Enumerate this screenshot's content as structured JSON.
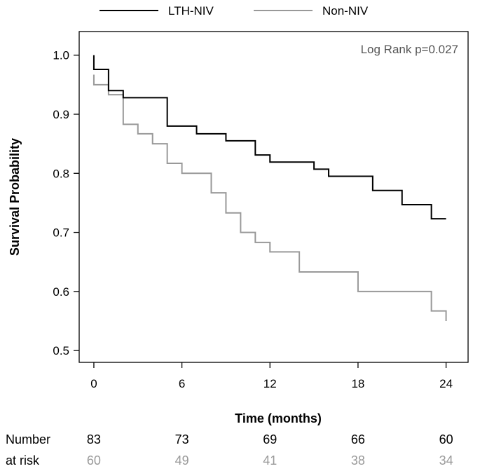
{
  "chart_data": {
    "type": "line",
    "subtype": "kaplan-meier step",
    "title": "",
    "xlabel": "Time (months)",
    "ylabel": "Survival Probability",
    "xlim": [
      -1,
      25.5
    ],
    "ylim": [
      0.48,
      1.04
    ],
    "xticks": [
      0,
      6,
      12,
      18,
      24
    ],
    "yticks": [
      0.5,
      0.6,
      0.7,
      0.8,
      0.9,
      1.0
    ],
    "xtick_labels": [
      "0",
      "6",
      "12",
      "18",
      "24"
    ],
    "ytick_labels": [
      "0.5",
      "0.6",
      "0.7",
      "0.8",
      "0.9",
      "1.0"
    ],
    "legend_position": "top",
    "annotation": "Log Rank p=0.027",
    "series": [
      {
        "name": "LTH-NIV",
        "color": "#000000",
        "x": [
          0,
          0,
          1,
          2,
          5,
          7,
          9,
          11,
          12,
          15,
          16,
          19,
          21,
          23,
          24
        ],
        "y": [
          1.0,
          0.976,
          0.94,
          0.928,
          0.88,
          0.867,
          0.855,
          0.831,
          0.819,
          0.807,
          0.795,
          0.771,
          0.747,
          0.723,
          0.723
        ]
      },
      {
        "name": "Non-NIV",
        "color": "#999999",
        "x": [
          0,
          0,
          1,
          2,
          3,
          4,
          5,
          6,
          8,
          9,
          10,
          11,
          12,
          14,
          18,
          23,
          24
        ],
        "y": [
          0.967,
          0.95,
          0.933,
          0.883,
          0.867,
          0.85,
          0.817,
          0.8,
          0.767,
          0.733,
          0.7,
          0.683,
          0.667,
          0.633,
          0.6,
          0.567,
          0.55
        ]
      }
    ],
    "risk_table": {
      "header_line1": "Number",
      "header_line2": "at risk",
      "times": [
        0,
        6,
        12,
        18,
        24
      ],
      "rows": [
        {
          "name": "LTH-NIV",
          "color": "#000000",
          "values": [
            "83",
            "73",
            "69",
            "66",
            "60"
          ]
        },
        {
          "name": "Non-NIV",
          "color": "#999999",
          "values": [
            "60",
            "49",
            "41",
            "38",
            "34"
          ]
        }
      ]
    }
  }
}
